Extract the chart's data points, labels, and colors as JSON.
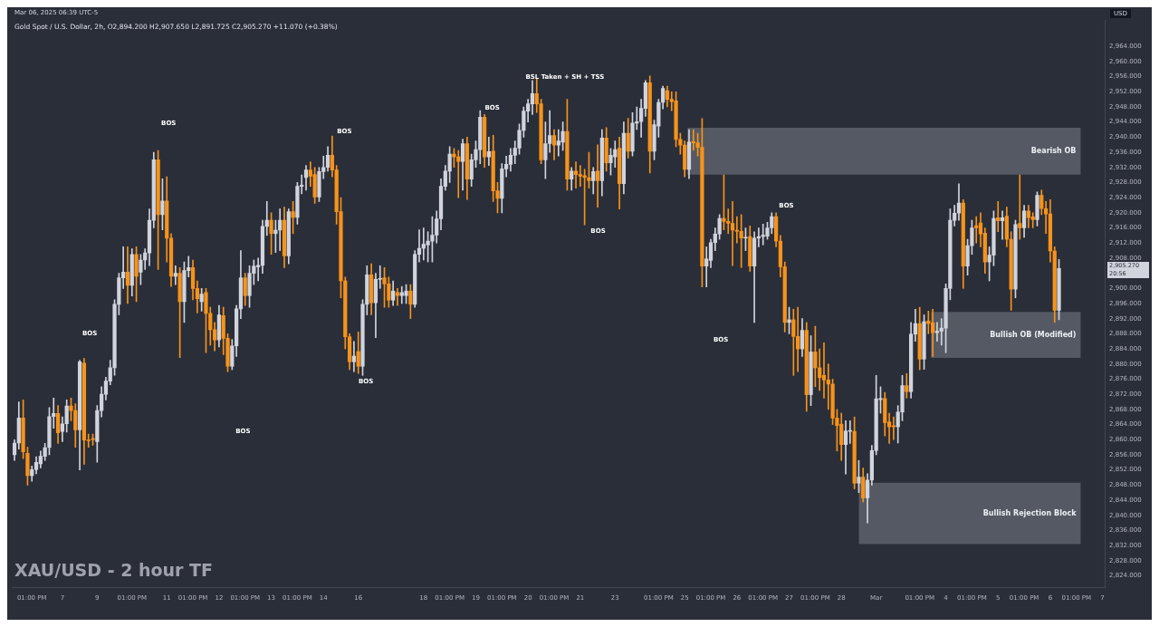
{
  "chart_data": {
    "type": "candlestick",
    "title": "XAU/USD - 2 hour TF",
    "subtitle": "Gold Spot / U.S. Dollar, 2h, O2,894.200 H2,907.650 L2,891.725 C2,905.270 +11.070 (+0.38%)",
    "ylabel": "USD",
    "categories": [
      null,
      null,
      null,
      null,
      "01:00 PM",
      null,
      null,
      null,
      null,
      null,
      null,
      "7",
      null,
      null,
      null,
      null,
      null,
      null,
      null,
      "9",
      null,
      null,
      null,
      null,
      null,
      null,
      null,
      "01:00 PM",
      null,
      null,
      null,
      null,
      null,
      null,
      null,
      "11",
      null,
      null,
      null,
      null,
      null,
      "01:00 PM",
      null,
      null,
      null,
      null,
      null,
      "12",
      null,
      null,
      null,
      null,
      null,
      "01:00 PM",
      null,
      null,
      null,
      null,
      null,
      "13",
      null,
      null,
      null,
      null,
      null,
      "01:00 PM",
      null,
      null,
      null,
      null,
      null,
      "14",
      null,
      null,
      null,
      null,
      null,
      null,
      null,
      "16",
      null,
      null,
      null,
      null,
      null,
      null,
      null,
      null,
      null,
      null,
      null,
      null,
      null,
      null,
      "18",
      null,
      null,
      null,
      null,
      null,
      "01:00 PM",
      null,
      null,
      null,
      null,
      null,
      "19",
      null,
      null,
      null,
      null,
      null,
      "01:00 PM",
      null,
      null,
      null,
      null,
      null,
      "20",
      null,
      null,
      null,
      null,
      null,
      "01:00 PM",
      null,
      null,
      null,
      null,
      null,
      "21",
      null,
      null,
      null,
      null,
      null,
      null,
      null,
      "23",
      null,
      null,
      null,
      null,
      null,
      null,
      null,
      null,
      null,
      "01:00 PM",
      null,
      null,
      null,
      null,
      null,
      "25",
      null,
      null,
      null,
      null,
      null,
      "01:00 PM",
      null,
      null,
      null,
      null,
      null,
      "26",
      null,
      null,
      null,
      null,
      null,
      "01:00 PM",
      null,
      null,
      null,
      null,
      null,
      "27",
      null,
      null,
      null,
      null,
      null,
      "01:00 PM",
      null,
      null,
      null,
      null,
      null,
      "28",
      null,
      null,
      null,
      null,
      null,
      null,
      null,
      "Mar",
      null,
      null,
      null,
      null,
      null,
      null,
      null,
      null,
      null,
      "01:00 PM",
      null,
      null,
      null,
      null,
      null,
      "4",
      null,
      null,
      null,
      null,
      null,
      "01:00 PM",
      null,
      null,
      null,
      null,
      null,
      "5",
      null,
      null,
      null,
      null,
      null,
      "01:00 PM",
      null,
      null,
      null,
      null,
      null,
      "6",
      null,
      null,
      null,
      null,
      null,
      "01:00 PM",
      null,
      null,
      null,
      null,
      null,
      "7"
    ],
    "ohlc": [
      [
        2856.0,
        2860,
        2854.5,
        2859.1
      ],
      [
        2859.1,
        2870,
        2857.5,
        2865.7
      ],
      [
        2865.7,
        2870.5,
        2855,
        2856.8
      ],
      [
        2856.4,
        2858,
        2848,
        2850.5
      ],
      [
        2850.5,
        2853,
        2849,
        2852.1
      ],
      [
        2852.1,
        2855.5,
        2851,
        2854.0
      ],
      [
        2853.6,
        2857,
        2852.5,
        2855.6
      ],
      [
        2855.6,
        2859,
        2854.5,
        2857.9
      ],
      [
        2857.9,
        2868.5,
        2856,
        2866.1
      ],
      [
        2866.1,
        2871,
        2863,
        2866.9
      ],
      [
        2866.9,
        2869,
        2859,
        2861.8
      ],
      [
        2862.2,
        2866,
        2859.5,
        2864.2
      ],
      [
        2864.2,
        2870.5,
        2862,
        2868.9
      ],
      [
        2868.9,
        2871,
        2865,
        2867.7
      ],
      [
        2867.7,
        2869.5,
        2858,
        2862.6
      ],
      [
        2862.6,
        2881,
        2852,
        2880.6
      ],
      [
        2880.2,
        2881.5,
        2853.5,
        2859.9
      ],
      [
        2859.9,
        2861.5,
        2858,
        2859.7
      ],
      [
        2860.3,
        2861.5,
        2858.5,
        2860.0
      ],
      [
        2859.5,
        2869,
        2854,
        2867.7
      ],
      [
        2867.7,
        2874,
        2866,
        2872.0
      ],
      [
        2872.0,
        2876.5,
        2870.5,
        2875.5
      ],
      [
        2875.5,
        2881,
        2874.5,
        2879.0
      ],
      [
        2879.0,
        2897,
        2877,
        2895.8
      ],
      [
        2895.8,
        2904,
        2893,
        2902.8
      ],
      [
        2902.8,
        2911,
        2900,
        2904.3
      ],
      [
        2904.3,
        2911,
        2896,
        2900.8
      ],
      [
        2900.8,
        2910.5,
        2898,
        2909.0
      ],
      [
        2909.0,
        2911,
        2896.5,
        2903.2
      ],
      [
        2904.3,
        2909,
        2901,
        2907.5
      ],
      [
        2907.5,
        2910.5,
        2905,
        2909.4
      ],
      [
        2909.4,
        2921,
        2906,
        2918.0
      ],
      [
        2918.0,
        2936,
        2916,
        2934.0
      ],
      [
        2934.0,
        2936.5,
        2905,
        2919.5
      ],
      [
        2919.5,
        2929,
        2915.5,
        2923.1
      ],
      [
        2923.1,
        2929.5,
        2907,
        2913.3
      ],
      [
        2913.3,
        2914.5,
        2900.5,
        2903.2
      ],
      [
        2903.2,
        2906,
        2901,
        2904.0
      ],
      [
        2904.0,
        2905.5,
        2881.7,
        2896.5
      ],
      [
        2896.5,
        2907,
        2891,
        2904.7
      ],
      [
        2904.7,
        2908.5,
        2903,
        2905.5
      ],
      [
        2905.5,
        2907.5,
        2897,
        2900.0
      ],
      [
        2900.0,
        2902,
        2893.5,
        2897.3
      ],
      [
        2896.5,
        2900,
        2894,
        2898.5
      ],
      [
        2898.9,
        2900,
        2883,
        2893.4
      ],
      [
        2893.4,
        2895,
        2885,
        2889.1
      ],
      [
        2889.1,
        2891,
        2883.5,
        2886.4
      ],
      [
        2886.4,
        2895.5,
        2884.5,
        2893.0
      ],
      [
        2892.8,
        2895,
        2882.5,
        2886.8
      ],
      [
        2886.8,
        2888,
        2878,
        2879.4
      ],
      [
        2879.4,
        2886.5,
        2878.5,
        2884.8
      ],
      [
        2884.8,
        2895.5,
        2882,
        2894.6
      ],
      [
        2894.6,
        2910,
        2892,
        2902.8
      ],
      [
        2902.8,
        2904,
        2895.5,
        2898.1
      ],
      [
        2898.1,
        2906,
        2895,
        2904.0
      ],
      [
        2904.0,
        2907.5,
        2901,
        2905.9
      ],
      [
        2905.7,
        2908,
        2902,
        2906.1
      ],
      [
        2906.1,
        2918,
        2904,
        2916.4
      ],
      [
        2916.4,
        2923,
        2914,
        2918.0
      ],
      [
        2918.0,
        2920,
        2909,
        2914.5
      ],
      [
        2914.5,
        2918,
        2909.5,
        2915.4
      ],
      [
        2915.4,
        2921,
        2910,
        2918.0
      ],
      [
        2918.0,
        2921.5,
        2905.5,
        2908.6
      ],
      [
        2908.6,
        2921,
        2906.5,
        2920.3
      ],
      [
        2920.3,
        2923,
        2914.5,
        2918.8
      ],
      [
        2918.8,
        2928,
        2917,
        2927.0
      ],
      [
        2927.0,
        2930,
        2925,
        2927.3
      ],
      [
        2929.3,
        2932.5,
        2926,
        2931.3
      ],
      [
        2931.3,
        2933.5,
        2927,
        2929.7
      ],
      [
        2930.1,
        2932,
        2922.5,
        2924.2
      ],
      [
        2924.2,
        2932,
        2923,
        2930.9
      ],
      [
        2930.9,
        2935,
        2929,
        2932.0
      ],
      [
        2932.0,
        2937.5,
        2931,
        2935.2
      ],
      [
        2935.2,
        2940.3,
        2929.5,
        2931.3
      ],
      [
        2931.3,
        2932.5,
        2917,
        2920.3
      ],
      [
        2920.3,
        2924,
        2897.5,
        2902.0
      ],
      [
        2902.0,
        2903,
        2884,
        2887.2
      ],
      [
        2887.2,
        2888,
        2878.5,
        2880.6
      ],
      [
        2880.6,
        2886,
        2878,
        2882.1
      ],
      [
        2883.3,
        2888.5,
        2877.5,
        2879.4
      ],
      [
        2879.4,
        2897,
        2877,
        2895.8
      ],
      [
        2895.8,
        2906,
        2893,
        2903.6
      ],
      [
        2903.6,
        2906.5,
        2893,
        2896.2
      ],
      [
        2896.2,
        2904,
        2887,
        2902.4
      ],
      [
        2902.4,
        2906,
        2900,
        2902.6
      ],
      [
        2902.8,
        2905.5,
        2895,
        2901.2
      ],
      [
        2901.2,
        2903,
        2895,
        2896.9
      ],
      [
        2896.9,
        2902,
        2895.5,
        2899.3
      ],
      [
        2898.9,
        2900,
        2895.5,
        2898.1
      ],
      [
        2898.1,
        2900.5,
        2896,
        2898.9
      ],
      [
        2898.1,
        2901,
        2896,
        2899.3
      ],
      [
        2899.3,
        2901,
        2892,
        2895.8
      ],
      [
        2895.8,
        2910,
        2895,
        2909.0
      ],
      [
        2909.0,
        2915.5,
        2907,
        2910.6
      ],
      [
        2910.6,
        2916,
        2907.5,
        2911.7
      ],
      [
        2911.5,
        2915,
        2907,
        2912.5
      ],
      [
        2912.5,
        2919,
        2907,
        2914.1
      ],
      [
        2914.1,
        2920.5,
        2912,
        2918.4
      ],
      [
        2918.4,
        2929,
        2915.5,
        2927.0
      ],
      [
        2927.0,
        2932.5,
        2926,
        2931.0
      ],
      [
        2931.0,
        2937.5,
        2928,
        2935.5
      ],
      [
        2935.5,
        2937,
        2932,
        2934.8
      ],
      [
        2934.8,
        2936.5,
        2924,
        2933.6
      ],
      [
        2933.6,
        2939.5,
        2926,
        2938.3
      ],
      [
        2938.3,
        2940,
        2923.5,
        2928.9
      ],
      [
        2928.9,
        2935.5,
        2927,
        2934.0
      ],
      [
        2934.0,
        2939,
        2932,
        2936.7
      ],
      [
        2936.7,
        2947,
        2933,
        2945.3
      ],
      [
        2945.3,
        2946,
        2932,
        2934.8
      ],
      [
        2934.8,
        2940,
        2932.5,
        2936.2
      ],
      [
        2936.3,
        2940.5,
        2923,
        2925.8
      ],
      [
        2925.8,
        2928,
        2920,
        2923.8
      ],
      [
        2923.8,
        2933,
        2920,
        2931.6
      ],
      [
        2931.6,
        2935,
        2929.5,
        2932.8
      ],
      [
        2932.8,
        2937,
        2931,
        2935.2
      ],
      [
        2935.2,
        2939,
        2933,
        2937.1
      ],
      [
        2937.1,
        2943.5,
        2935.5,
        2941.8
      ],
      [
        2941.8,
        2948,
        2940,
        2946.9
      ],
      [
        2946.9,
        2950,
        2944,
        2948.8
      ],
      [
        2948.8,
        2955,
        2946,
        2951.5
      ],
      [
        2951.5,
        2955.5,
        2946.5,
        2948.8
      ],
      [
        2948.8,
        2950,
        2933,
        2934.0
      ],
      [
        2934.0,
        2944,
        2929,
        2938.3
      ],
      [
        2938.3,
        2947,
        2936,
        2940.4
      ],
      [
        2940.4,
        2942,
        2934,
        2937.9
      ],
      [
        2937.9,
        2942,
        2935,
        2939.0
      ],
      [
        2938.7,
        2944,
        2936.5,
        2941.5
      ],
      [
        2941.5,
        2950,
        2926,
        2928.9
      ],
      [
        2928.9,
        2932,
        2926,
        2931.0
      ],
      [
        2931.0,
        2933.5,
        2926.5,
        2930.1
      ],
      [
        2930.1,
        2932.5,
        2927,
        2929.7
      ],
      [
        2929.8,
        2931.5,
        2916.8,
        2929.3
      ],
      [
        2929.3,
        2936,
        2926.5,
        2928.5
      ],
      [
        2928.5,
        2932,
        2925,
        2930.9
      ],
      [
        2931.0,
        2938,
        2921.5,
        2928.5
      ],
      [
        2928.5,
        2942,
        2924.5,
        2939.8
      ],
      [
        2939.8,
        2942.5,
        2931,
        2933.2
      ],
      [
        2933.2,
        2937,
        2930,
        2935.2
      ],
      [
        2934.8,
        2939,
        2932,
        2936.7
      ],
      [
        2937.1,
        2940,
        2921,
        2927.7
      ],
      [
        2927.7,
        2944,
        2925,
        2941.0
      ],
      [
        2941.0,
        2945,
        2934.5,
        2936.3
      ],
      [
        2936.3,
        2946.5,
        2935,
        2943.7
      ],
      [
        2943.7,
        2948,
        2942,
        2944.1
      ],
      [
        2944.1,
        2950,
        2940,
        2947.6
      ],
      [
        2947.6,
        2955,
        2945.5,
        2954.4
      ],
      [
        2954.4,
        2956.2,
        2930.5,
        2936.3
      ],
      [
        2936.3,
        2944.5,
        2934,
        2943.3
      ],
      [
        2942.9,
        2950,
        2940,
        2949.2
      ],
      [
        2949.2,
        2953.5,
        2947.5,
        2952.9
      ],
      [
        2952.3,
        2953.5,
        2948,
        2950.0
      ],
      [
        2950.0,
        2952,
        2947,
        2949.4
      ],
      [
        2949.6,
        2952,
        2937.5,
        2939.4
      ],
      [
        2939.4,
        2941,
        2935.5,
        2937.9
      ],
      [
        2937.9,
        2939,
        2929.5,
        2931.5
      ],
      [
        2931.5,
        2942,
        2929,
        2938.7
      ],
      [
        2938.8,
        2942,
        2936.5,
        2938.5
      ],
      [
        2938.5,
        2941,
        2935,
        2937.3
      ],
      [
        2937.3,
        2944.9,
        2900.4,
        2905.9
      ],
      [
        2905.9,
        2911,
        2900.4,
        2907.8
      ],
      [
        2907.4,
        2913,
        2905.5,
        2912.1
      ],
      [
        2912.1,
        2916,
        2910,
        2914.4
      ],
      [
        2914.4,
        2919.5,
        2913,
        2918.5
      ],
      [
        2918.5,
        2930,
        2915.5,
        2917.7
      ],
      [
        2917.7,
        2921,
        2914.5,
        2917.2
      ],
      [
        2917.2,
        2923,
        2906,
        2915.4
      ],
      [
        2915.4,
        2919,
        2912,
        2915.1
      ],
      [
        2915.1,
        2919.5,
        2905.5,
        2913.3
      ],
      [
        2913.3,
        2916,
        2910,
        2913.4
      ],
      [
        2913.7,
        2916.5,
        2904.5,
        2905.9
      ],
      [
        2905.9,
        2915,
        2891,
        2913.3
      ],
      [
        2913.3,
        2916,
        2911,
        2913.7
      ],
      [
        2913.7,
        2917,
        2911.5,
        2914.1
      ],
      [
        2913.8,
        2917.5,
        2913,
        2916.0
      ],
      [
        2916.0,
        2920,
        2914.5,
        2919.0
      ],
      [
        2919.0,
        2920,
        2911,
        2912.5
      ],
      [
        2912.5,
        2914,
        2903,
        2905.7
      ],
      [
        2905.7,
        2907,
        2888.5,
        2891.0
      ],
      [
        2891.0,
        2895,
        2888,
        2891.7
      ],
      [
        2891.7,
        2894.5,
        2877,
        2887.3
      ],
      [
        2887.3,
        2895,
        2878,
        2884.0
      ],
      [
        2884.0,
        2892,
        2882,
        2888.9
      ],
      [
        2888.9,
        2891,
        2867.5,
        2871.9
      ],
      [
        2871.9,
        2887.5,
        2869,
        2883.2
      ],
      [
        2883.2,
        2890,
        2874,
        2879.0
      ],
      [
        2879.0,
        2884,
        2873,
        2876.4
      ],
      [
        2877.0,
        2885.6,
        2871,
        2875.8
      ],
      [
        2875.8,
        2880,
        2868,
        2874.7
      ],
      [
        2874.7,
        2876,
        2864,
        2865.7
      ],
      [
        2865.7,
        2868,
        2857,
        2863.7
      ],
      [
        2864.1,
        2867,
        2854.5,
        2858.7
      ],
      [
        2858.7,
        2865,
        2850.9,
        2862.3
      ],
      [
        2862.2,
        2865,
        2859,
        2862.3
      ],
      [
        2862.2,
        2866,
        2847,
        2848.5
      ],
      [
        2848.5,
        2854.5,
        2846,
        2850.1
      ],
      [
        2850.1,
        2852.5,
        2843.5,
        2844.6
      ],
      [
        2844.6,
        2851,
        2838,
        2849.3
      ],
      [
        2849.3,
        2858.5,
        2848,
        2857.1
      ],
      [
        2857.1,
        2877,
        2856,
        2870.8
      ],
      [
        2870.6,
        2874,
        2867,
        2870.9
      ],
      [
        2870.9,
        2872.5,
        2861,
        2864.5
      ],
      [
        2864.7,
        2867,
        2859,
        2863.4
      ],
      [
        2863.7,
        2866,
        2860,
        2863.4
      ],
      [
        2863.4,
        2869,
        2859.1,
        2867.3
      ],
      [
        2867.3,
        2877,
        2865,
        2874.3
      ],
      [
        2874.3,
        2877.5,
        2871,
        2872.7
      ],
      [
        2872.7,
        2891,
        2871,
        2887.9
      ],
      [
        2887.9,
        2894.5,
        2886,
        2890.7
      ],
      [
        2890.7,
        2895,
        2878.5,
        2881.3
      ],
      [
        2881.3,
        2893,
        2878.6,
        2891.2
      ],
      [
        2891.4,
        2894,
        2888,
        2890.7
      ],
      [
        2890.9,
        2894.5,
        2882,
        2888.3
      ],
      [
        2888.3,
        2891,
        2886,
        2888.7
      ],
      [
        2888.7,
        2892,
        2885,
        2889.5
      ],
      [
        2889.5,
        2901.2,
        2883,
        2900.0
      ],
      [
        2900.0,
        2921,
        2897,
        2918.0
      ],
      [
        2918.0,
        2922,
        2916.5,
        2919.9
      ],
      [
        2919.9,
        2927.7,
        2918,
        2922.6
      ],
      [
        2922.6,
        2923.5,
        2900,
        2905.9
      ],
      [
        2905.9,
        2913,
        2903.5,
        2911.3
      ],
      [
        2911.3,
        2918,
        2909,
        2916.0
      ],
      [
        2916.6,
        2919,
        2912,
        2916.0
      ],
      [
        2917.3,
        2920,
        2911,
        2914.4
      ],
      [
        2914.6,
        2916,
        2904,
        2907.0
      ],
      [
        2907.0,
        2911,
        2902,
        2908.8
      ],
      [
        2908.8,
        2920.5,
        2906,
        2918.5
      ],
      [
        2918.7,
        2923,
        2915,
        2917.9
      ],
      [
        2917.9,
        2920.5,
        2913,
        2918.7
      ],
      [
        2919.1,
        2921.5,
        2911,
        2913.0
      ],
      [
        2913.0,
        2915,
        2894.2,
        2899.8
      ],
      [
        2899.8,
        2918,
        2897.5,
        2916.9
      ],
      [
        2917.2,
        2930,
        2913,
        2916.0
      ],
      [
        2916.0,
        2922,
        2913.5,
        2920.5
      ],
      [
        2920.5,
        2922,
        2916,
        2918.7
      ],
      [
        2918.9,
        2920,
        2916,
        2918.2
      ],
      [
        2918.2,
        2925.5,
        2916.5,
        2924.6
      ],
      [
        2924.6,
        2926,
        2919.5,
        2921.1
      ],
      [
        2921.1,
        2923,
        2914.5,
        2919.7
      ],
      [
        2919.7,
        2923.5,
        2907,
        2909.9
      ],
      [
        2909.9,
        2911,
        2891,
        2894.2
      ],
      [
        2894.2,
        2907.65,
        2891.725,
        2905.27
      ],
      null,
      null,
      null,
      null,
      null,
      null,
      null,
      null,
      null,
      null
    ],
    "colors": [
      "#d1d4dc",
      "#d1d4dc",
      "#f7931a",
      "#f7931a",
      "#d1d4dc",
      "#d1d4dc",
      "#d1d4dc",
      "#d1d4dc",
      "#d1d4dc",
      "#d1d4dc",
      "#f7931a",
      "#d1d4dc",
      "#d1d4dc",
      "#f7931a",
      "#f7931a",
      "#d1d4dc",
      "#f7931a",
      "#f7931a",
      "#f7931a",
      "#d1d4dc",
      "#d1d4dc",
      "#d1d4dc",
      "#d1d4dc",
      "#d1d4dc",
      "#d1d4dc",
      "#d1d4dc",
      "#f7931a",
      "#d1d4dc",
      "#f7931a",
      "#d1d4dc",
      "#d1d4dc",
      "#d1d4dc",
      "#d1d4dc",
      "#f7931a",
      "#d1d4dc",
      "#f7931a",
      "#f7931a",
      "#d1d4dc",
      "#f7931a",
      "#d1d4dc",
      "#d1d4dc",
      "#f7931a",
      "#f7931a",
      "#d1d4dc",
      "#f7931a",
      "#f7931a",
      "#f7931a",
      "#d1d4dc",
      "#f7931a",
      "#f7931a",
      "#d1d4dc",
      "#d1d4dc",
      "#d1d4dc",
      "#f7931a",
      "#d1d4dc",
      "#d1d4dc",
      "#d1d4dc",
      "#d1d4dc",
      "#d1d4dc",
      "#f7931a",
      "#d1d4dc",
      "#d1d4dc",
      "#f7931a",
      "#d1d4dc",
      "#f7931a",
      "#d1d4dc",
      "#d1d4dc",
      "#d1d4dc",
      "#f7931a",
      "#f7931a",
      "#d1d4dc",
      "#d1d4dc",
      "#d1d4dc",
      "#f7931a",
      "#f7931a",
      "#f7931a",
      "#f7931a",
      "#f7931a",
      "#d1d4dc",
      "#f7931a",
      "#d1d4dc",
      "#d1d4dc",
      "#f7931a",
      "#d1d4dc",
      "#d1d4dc",
      "#f7931a",
      "#f7931a",
      "#d1d4dc",
      "#f7931a",
      "#d1d4dc",
      "#d1d4dc",
      "#f7931a",
      "#d1d4dc",
      "#d1d4dc",
      "#d1d4dc",
      "#d1d4dc",
      "#d1d4dc",
      "#d1d4dc",
      "#d1d4dc",
      "#d1d4dc",
      "#d1d4dc",
      "#f7931a",
      "#f7931a",
      "#d1d4dc",
      "#f7931a",
      "#d1d4dc",
      "#d1d4dc",
      "#d1d4dc",
      "#f7931a",
      "#d1d4dc",
      "#f7931a",
      "#f7931a",
      "#d1d4dc",
      "#d1d4dc",
      "#d1d4dc",
      "#d1d4dc",
      "#d1d4dc",
      "#d1d4dc",
      "#d1d4dc",
      "#d1d4dc",
      "#f7931a",
      "#f7931a",
      "#d1d4dc",
      "#d1d4dc",
      "#f7931a",
      "#d1d4dc",
      "#d1d4dc",
      "#f7931a",
      "#d1d4dc",
      "#f7931a",
      "#f7931a",
      "#f7931a",
      "#f7931a",
      "#d1d4dc",
      "#f7931a",
      "#d1d4dc",
      "#f7931a",
      "#d1d4dc",
      "#d1d4dc",
      "#f7931a",
      "#d1d4dc",
      "#f7931a",
      "#d1d4dc",
      "#d1d4dc",
      "#d1d4dc",
      "#d1d4dc",
      "#f7931a",
      "#d1d4dc",
      "#d1d4dc",
      "#d1d4dc",
      "#f7931a",
      "#f7931a",
      "#f7931a",
      "#f7931a",
      "#f7931a",
      "#d1d4dc",
      "#f7931a",
      "#f7931a",
      "#f7931a",
      "#d1d4dc",
      "#d1d4dc",
      "#d1d4dc",
      "#d1d4dc",
      "#f7931a",
      "#f7931a",
      "#f7931a",
      "#f7931a",
      "#f7931a",
      "#d1d4dc",
      "#f7931a",
      "#d1d4dc",
      "#d1d4dc",
      "#d1d4dc",
      "#d1d4dc",
      "#d1d4dc",
      "#f7931a",
      "#f7931a",
      "#f7931a",
      "#d1d4dc",
      "#f7931a",
      "#f7931a",
      "#d1d4dc",
      "#f7931a",
      "#d1d4dc",
      "#f7931a",
      "#f7931a",
      "#f7931a",
      "#f7931a",
      "#f7931a",
      "#f7931a",
      "#f7931a",
      "#d1d4dc",
      "#d1d4dc",
      "#f7931a",
      "#d1d4dc",
      "#f7931a",
      "#d1d4dc",
      "#d1d4dc",
      "#d1d4dc",
      "#d1d4dc",
      "#f7931a",
      "#f7931a",
      "#f7931a",
      "#d1d4dc",
      "#d1d4dc",
      "#f7931a",
      "#d1d4dc",
      "#d1d4dc",
      "#f7931a",
      "#d1d4dc",
      "#f7931a",
      "#f7931a",
      "#d1d4dc",
      "#d1d4dc",
      "#d1d4dc",
      "#d1d4dc",
      "#d1d4dc",
      "#d1d4dc",
      "#f7931a",
      "#d1d4dc",
      "#d1d4dc",
      "#f7931a",
      "#f7931a",
      "#f7931a",
      "#d1d4dc",
      "#d1d4dc",
      "#f7931a",
      "#d1d4dc",
      "#f7931a",
      "#f7931a",
      "#d1d4dc",
      "#f7931a",
      "#d1d4dc",
      "#f7931a",
      "#f7931a",
      "#d1d4dc",
      "#f7931a",
      "#f7931a",
      "#f7931a",
      "#f7931a",
      "#d1d4dc",
      null,
      null,
      null,
      null,
      null,
      null,
      null,
      null,
      null,
      null
    ],
    "ylim": [
      2821,
      2971
    ],
    "yticks": [
      {
        "value": 2824,
        "label": "2,824.000"
      },
      {
        "value": 2828,
        "label": "2,828.000"
      },
      {
        "value": 2832,
        "label": "2,832.000"
      },
      {
        "value": 2836,
        "label": "2,836.000"
      },
      {
        "value": 2840,
        "label": "2,840.000"
      },
      {
        "value": 2844,
        "label": "2,844.000"
      },
      {
        "value": 2848,
        "label": "2,848.000"
      },
      {
        "value": 2852,
        "label": "2,852.000"
      },
      {
        "value": 2856,
        "label": "2,856.000"
      },
      {
        "value": 2860,
        "label": "2,860.000"
      },
      {
        "value": 2864,
        "label": "2,864.000"
      },
      {
        "value": 2868,
        "label": "2,868.000"
      },
      {
        "value": 2872,
        "label": "2,872.000"
      },
      {
        "value": 2876,
        "label": "2,876.000"
      },
      {
        "value": 2880,
        "label": "2,880.000"
      },
      {
        "value": 2884,
        "label": "2,884.000"
      },
      {
        "value": 2888,
        "label": "2,888.000"
      },
      {
        "value": 2892,
        "label": "2,892.000"
      },
      {
        "value": 2896,
        "label": "2,896.000"
      },
      {
        "value": 2900,
        "label": "2,900.000"
      },
      {
        "value": 2908,
        "label": "2,908.000"
      },
      {
        "value": 2912,
        "label": "2,912.000"
      },
      {
        "value": 2916,
        "label": "2,916.000"
      },
      {
        "value": 2920,
        "label": "2,920.000"
      },
      {
        "value": 2924,
        "label": "2,924.000"
      },
      {
        "value": 2928,
        "label": "2,928.000"
      },
      {
        "value": 2932,
        "label": "2,932.000"
      },
      {
        "value": 2936,
        "label": "2,936.000"
      },
      {
        "value": 2940,
        "label": "2,940.000"
      },
      {
        "value": 2944,
        "label": "2,944.000"
      },
      {
        "value": 2948,
        "label": "2,948.000"
      },
      {
        "value": 2952,
        "label": "2,952.000"
      },
      {
        "value": 2956,
        "label": "2,956.000"
      },
      {
        "value": 2960,
        "label": "2,960.000"
      },
      {
        "value": 2964,
        "label": "2,964.000"
      }
    ],
    "bands": [
      {
        "axis": "y",
        "from": 2930.1,
        "to": 2942.5,
        "label": "Bearish OB",
        "color": "#5d606b"
      },
      {
        "axis": "y",
        "from": 2881.6,
        "to": 2893.8,
        "label": "Bullish OB (Modified)",
        "color": "#5d606b"
      },
      {
        "axis": "y",
        "from": 2832.4,
        "to": 2848.6,
        "label": "Bullish Rejection Block",
        "color": "#5d606b"
      }
    ],
    "annotations": [
      "Mar 06, 2025 06:39 UTC-5",
      "BOS",
      "BOS",
      "BOS",
      "BOS",
      "BOS",
      "BOS",
      "BOS",
      "BOS",
      "BOS",
      "BSL Taken + SH + TSS",
      "2,905.270",
      "20:56"
    ],
    "grid": false,
    "legend": false
  }
}
